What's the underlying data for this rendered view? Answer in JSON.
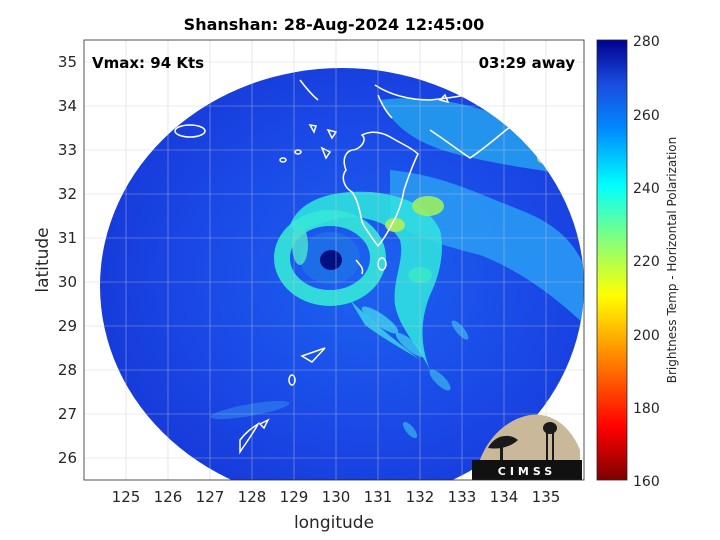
{
  "title": "Shanshan: 28-Aug-2024 12:45:00",
  "vmax_label": "Vmax: 94 Kts",
  "time_away_label": "03:29 away",
  "xlabel": "longitude",
  "ylabel": "latitude",
  "colorbar_label": "Brightness Temp - Horizontal Polarization",
  "logo_text": "CIMSS",
  "x_ticks": [
    "125",
    "126",
    "127",
    "128",
    "129",
    "130",
    "131",
    "132",
    "133",
    "134",
    "135"
  ],
  "y_ticks": [
    "35",
    "34",
    "33",
    "32",
    "31",
    "30",
    "29",
    "28",
    "27",
    "26"
  ],
  "colorbar_ticks": [
    "280",
    "260",
    "240",
    "220",
    "200",
    "180",
    "160"
  ],
  "chart_data": {
    "type": "heatmap",
    "title": "Shanshan: 28-Aug-2024 12:45:00",
    "xlabel": "longitude",
    "ylabel": "latitude",
    "xlim": [
      124.1,
      135.7
    ],
    "ylim": [
      25.5,
      35.5
    ],
    "grid": true,
    "colorbar": {
      "label": "Brightness Temp - Horizontal Polarization",
      "range": [
        160,
        280
      ],
      "ticks": [
        160,
        180,
        200,
        220,
        240,
        260,
        280
      ]
    },
    "storm_center": {
      "lon": 129.8,
      "lat": 30.5
    }
  }
}
